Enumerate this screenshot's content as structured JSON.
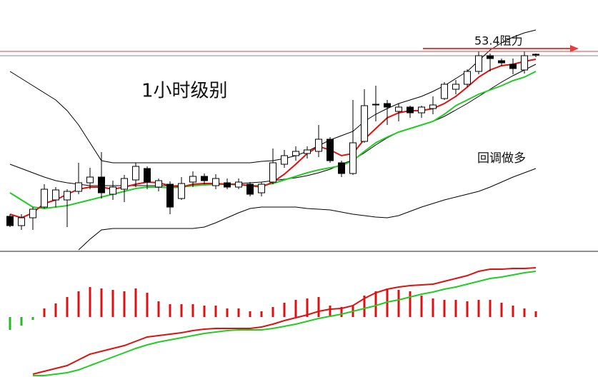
{
  "chart_data": [
    {
      "type": "candlestick",
      "ylim": [
        50.6,
        54.12
      ],
      "up_color": "#ffffff",
      "down_color": "#000000",
      "open": [
        51.09,
        50.96,
        51.07,
        51.22,
        51.32,
        51.32,
        51.44,
        51.56,
        51.64,
        51.4,
        51.47,
        51.6,
        51.76,
        51.5,
        51.54,
        51.34,
        51.57,
        51.65,
        51.52,
        51.56,
        51.5,
        51.54,
        51.42,
        51.57,
        51.82,
        51.94,
        51.97,
        52.0,
        52.17,
        51.84,
        51.69,
        52.14,
        52.65,
        52.67,
        52.56,
        52.62,
        52.54,
        52.6,
        52.74,
        52.87,
        52.94,
        53.12,
        53.34,
        53.27,
        53.22,
        53.14,
        53.35
      ],
      "high": [
        51.12,
        51.12,
        51.22,
        51.54,
        51.5,
        51.47,
        51.84,
        51.77,
        51.99,
        51.59,
        51.67,
        51.84,
        51.79,
        51.62,
        51.58,
        51.64,
        51.72,
        51.69,
        51.68,
        51.62,
        51.62,
        51.57,
        51.57,
        52.04,
        52.02,
        52.07,
        52.07,
        52.37,
        52.2,
        51.87,
        52.72,
        52.87,
        52.92,
        52.72,
        52.67,
        52.64,
        52.64,
        52.77,
        52.97,
        53.0,
        53.15,
        53.4,
        53.37,
        53.3,
        53.3,
        53.4,
        53.37
      ],
      "low": [
        50.94,
        50.9,
        50.9,
        51.2,
        51.22,
        50.94,
        51.4,
        51.47,
        51.34,
        51.32,
        51.29,
        51.5,
        51.47,
        51.44,
        51.12,
        51.32,
        51.5,
        51.54,
        51.47,
        51.47,
        51.47,
        51.37,
        51.37,
        51.54,
        51.77,
        51.87,
        51.9,
        51.92,
        51.84,
        51.64,
        51.67,
        52.12,
        52.42,
        52.37,
        52.42,
        52.47,
        52.47,
        52.52,
        52.72,
        52.8,
        52.9,
        53.08,
        53.12,
        53.2,
        53.08,
        53.09,
        53.32
      ],
      "close": [
        50.96,
        51.07,
        51.19,
        51.47,
        51.46,
        51.44,
        51.56,
        51.64,
        51.42,
        51.5,
        51.62,
        51.79,
        51.57,
        51.59,
        51.22,
        51.55,
        51.65,
        51.59,
        51.62,
        51.5,
        51.57,
        51.4,
        51.54,
        51.84,
        51.94,
        52.0,
        52.02,
        52.17,
        51.87,
        51.69,
        52.12,
        52.64,
        52.66,
        52.62,
        52.62,
        52.54,
        52.62,
        52.65,
        52.94,
        52.94,
        53.12,
        53.34,
        53.3,
        53.24,
        53.16,
        53.34,
        53.36
      ],
      "series": [
        {
          "color": "#000000",
          "values": [
            53.12,
            53.02,
            52.92,
            52.82,
            52.72,
            52.57,
            52.37,
            52.12,
            51.87,
            51.84,
            51.84,
            51.84,
            51.84,
            51.84,
            51.84,
            51.84,
            51.84,
            51.84,
            51.84,
            51.84,
            51.84,
            51.84,
            51.86,
            51.87,
            51.9,
            51.94,
            52.0,
            52.08,
            52.16,
            52.22,
            52.28,
            52.42,
            52.52,
            52.6,
            52.67,
            52.72,
            52.77,
            52.84,
            52.92,
            53.02,
            53.12,
            53.27,
            53.42,
            53.52,
            53.6,
            53.66,
            53.7
          ]
        },
        {
          "color": "#000000",
          "values": [
            51.82,
            51.76,
            51.7,
            51.64,
            51.59,
            51.56,
            51.54,
            51.52,
            51.52,
            51.52,
            51.52,
            51.52,
            51.52,
            51.52,
            51.52,
            51.52,
            51.52,
            51.53,
            51.53,
            51.54,
            51.55,
            51.56,
            51.57,
            51.59,
            51.61,
            51.63,
            51.66,
            51.7,
            51.75,
            51.82,
            51.88,
            51.98,
            52.09,
            52.19,
            52.27,
            52.32,
            52.37,
            52.42,
            52.49,
            52.58,
            52.67,
            52.77,
            52.87,
            52.97,
            53.06,
            53.14,
            53.22
          ]
        },
        {
          "color": "#000000",
          "values": [
            null,
            null,
            null,
            null,
            null,
            null,
            50.62,
            50.77,
            50.9,
            50.92,
            50.92,
            50.92,
            50.92,
            50.92,
            50.92,
            50.92,
            50.92,
            50.94,
            51.0,
            51.07,
            51.14,
            51.2,
            51.22,
            51.22,
            51.22,
            51.22,
            51.2,
            51.19,
            51.18,
            51.15,
            51.12,
            51.1,
            51.08,
            51.07,
            51.1,
            51.16,
            51.22,
            51.27,
            51.32,
            51.36,
            51.4,
            51.44,
            51.5,
            51.57,
            51.64,
            51.7,
            51.76
          ]
        },
        {
          "color": "#22cc22",
          "values": [
            51.42,
            51.32,
            51.22,
            51.2,
            51.22,
            51.24,
            51.28,
            51.32,
            51.36,
            51.4,
            51.44,
            51.48,
            51.5,
            51.5,
            51.49,
            51.5,
            51.52,
            51.53,
            51.54,
            51.54,
            51.53,
            51.52,
            51.52,
            51.55,
            51.6,
            51.65,
            51.7,
            51.74,
            51.77,
            51.8,
            51.87,
            52.0,
            52.12,
            52.2,
            52.27,
            52.32,
            52.37,
            52.42,
            52.52,
            52.64,
            52.72,
            52.8,
            52.86,
            52.92,
            52.99,
            53.04,
            53.12
          ]
        },
        {
          "color": "#dd1111",
          "values": [
            51.12,
            51.07,
            51.14,
            51.27,
            51.32,
            51.4,
            51.47,
            51.5,
            51.5,
            51.47,
            51.5,
            51.54,
            51.57,
            51.56,
            51.52,
            51.5,
            51.54,
            51.55,
            51.55,
            51.54,
            51.54,
            51.52,
            51.5,
            51.57,
            51.68,
            51.82,
            51.97,
            52.07,
            52.02,
            51.94,
            51.97,
            52.17,
            52.32,
            52.47,
            52.54,
            52.57,
            52.57,
            52.6,
            52.67,
            52.77,
            52.9,
            53.04,
            53.14,
            53.2,
            53.22,
            53.26,
            53.29
          ]
        }
      ],
      "resistance": {
        "value": 53.4,
        "label": "53.4阻力",
        "color": "#e04040"
      },
      "annotations": [
        "1小时级别",
        "回调做多"
      ]
    },
    {
      "type": "macd",
      "ylim": [
        -0.084,
        0.092
      ],
      "histogram": {
        "up_color": "#dd1111",
        "down_color": "#22bb22",
        "values": [
          -0.018,
          -0.012,
          -0.004,
          0.012,
          0.019,
          0.028,
          0.036,
          0.042,
          0.04,
          0.038,
          0.036,
          0.04,
          0.034,
          0.022,
          0.018,
          0.018,
          0.018,
          0.016,
          0.016,
          0.012,
          0.012,
          0.008,
          0.008,
          0.014,
          0.02,
          0.024,
          0.026,
          0.028,
          0.016,
          0.014,
          0.016,
          0.03,
          0.036,
          0.04,
          0.038,
          0.036,
          0.03,
          0.026,
          0.024,
          0.024,
          0.022,
          0.024,
          0.024,
          0.02,
          0.016,
          0.012,
          0.008
        ]
      },
      "series": [
        {
          "color": "#dd1111",
          "values": [
            null,
            null,
            -0.08,
            -0.076,
            -0.072,
            -0.068,
            -0.06,
            -0.052,
            -0.048,
            -0.044,
            -0.04,
            -0.034,
            -0.028,
            -0.026,
            -0.024,
            -0.022,
            -0.019,
            -0.017,
            -0.016,
            -0.016,
            -0.016,
            -0.016,
            -0.014,
            -0.01,
            -0.005,
            -0.001,
            0.003,
            0.008,
            0.011,
            0.012,
            0.016,
            0.026,
            0.034,
            0.039,
            0.042,
            0.044,
            0.045,
            0.046,
            0.05,
            0.054,
            0.058,
            0.064,
            0.067,
            0.067,
            0.068,
            0.068,
            0.069
          ]
        },
        {
          "color": "#22cc22",
          "values": [
            null,
            null,
            -0.082,
            -0.082,
            -0.08,
            -0.078,
            -0.074,
            -0.068,
            -0.062,
            -0.056,
            -0.05,
            -0.044,
            -0.039,
            -0.035,
            -0.032,
            -0.029,
            -0.026,
            -0.023,
            -0.021,
            -0.019,
            -0.018,
            -0.018,
            -0.018,
            -0.016,
            -0.013,
            -0.01,
            -0.006,
            -0.002,
            0.001,
            0.004,
            0.008,
            0.012,
            0.016,
            0.021,
            0.024,
            0.028,
            0.032,
            0.035,
            0.039,
            0.042,
            0.046,
            0.05,
            0.054,
            0.056,
            0.059,
            0.062,
            0.064
          ]
        }
      ]
    }
  ]
}
